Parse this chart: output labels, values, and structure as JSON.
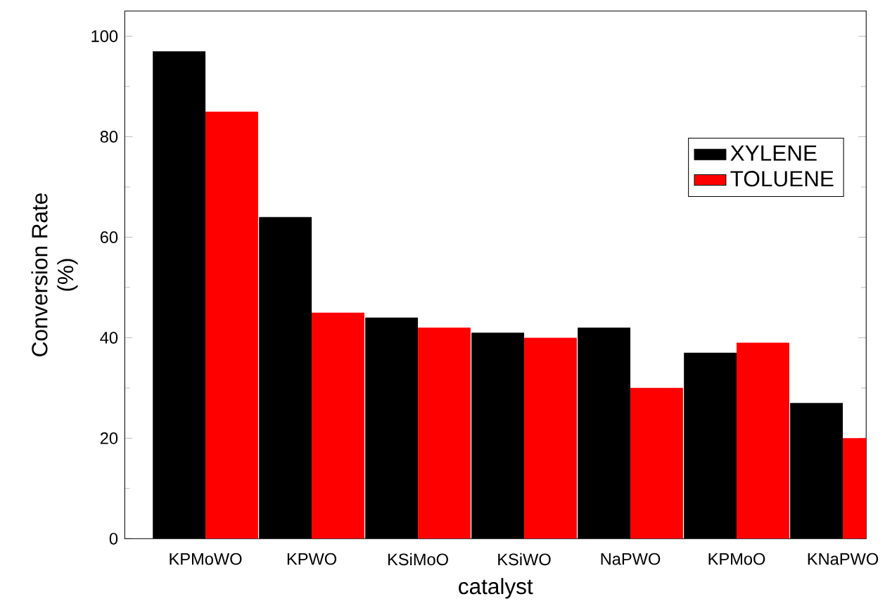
{
  "chart_data": {
    "type": "bar",
    "xlabel": "catalyst",
    "ylabel": "Conversion Rate\n(%)",
    "categories": [
      "KPMoWO",
      "KPWO",
      "KSiMoO",
      "KSiWO",
      "NaPWO",
      "KPMoO",
      "KNaPWO"
    ],
    "series": [
      {
        "name": "XYLENE",
        "color": "#000000",
        "values": [
          97,
          64,
          44,
          41,
          42,
          37,
          27
        ]
      },
      {
        "name": "TOLUENE",
        "color": "#ff0000",
        "values": [
          85,
          45,
          42,
          40,
          30,
          39,
          20
        ]
      }
    ],
    "ylim": [
      0,
      105
    ],
    "yticks": [
      0,
      20,
      40,
      60,
      80,
      100
    ],
    "grid": false,
    "legend": "top right"
  }
}
